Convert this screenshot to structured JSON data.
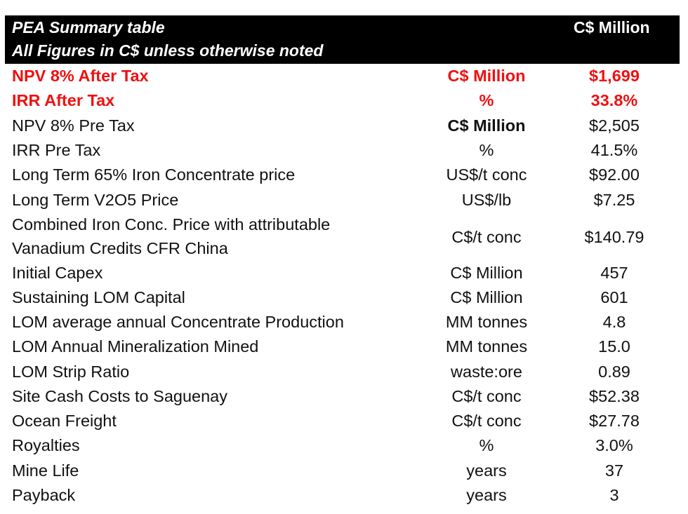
{
  "header": {
    "title": "PEA Summary table",
    "subtitle": "All Figures in C$ unless otherwise noted",
    "value_header": "C$ Million"
  },
  "rows": [
    {
      "label": "NPV  8% After Tax",
      "unit": "C$ Million",
      "value": "$1,699"
    },
    {
      "label": "IRR After Tax",
      "unit": "%",
      "value": "33.8%"
    },
    {
      "label": "NPV  8%  Pre Tax",
      "unit": "C$ Million",
      "value": "$2,505"
    },
    {
      "label": "IRR Pre Tax",
      "unit": "%",
      "value": "41.5%"
    },
    {
      "label": "Long Term 65% Iron Concentrate price",
      "unit": "US$/t conc",
      "value": "$92.00"
    },
    {
      "label": "Long Term V2O5 Price",
      "unit": "US$/lb",
      "value": "$7.25"
    },
    {
      "label": "Combined Iron Conc. Price with attributable Vanadium Credits CFR China",
      "unit": "C$/t conc",
      "value": "$140.79"
    },
    {
      "label": "Initial Capex",
      "unit": "C$ Million",
      "value": "457"
    },
    {
      "label": "Sustaining LOM Capital",
      "unit": "C$ Million",
      "value": "601"
    },
    {
      "label": "LOM average annual Concentrate Production",
      "unit": "MM tonnes",
      "value": "4.8"
    },
    {
      "label": "LOM Annual Mineralization Mined",
      "unit": "MM tonnes",
      "value": "15.0"
    },
    {
      "label": "LOM Strip Ratio",
      "unit": "waste:ore",
      "value": "0.89"
    },
    {
      "label": "Site Cash Costs to Saguenay",
      "unit": "C$/t conc",
      "value": "$52.38"
    },
    {
      "label": "Ocean Freight",
      "unit": "C$/t conc",
      "value": "$27.78"
    },
    {
      "label": "Royalties",
      "unit": "%",
      "value": "3.0%"
    },
    {
      "label": "Mine Life",
      "unit": "years",
      "value": "37"
    },
    {
      "label": "Payback",
      "unit": "years",
      "value": "3"
    }
  ]
}
